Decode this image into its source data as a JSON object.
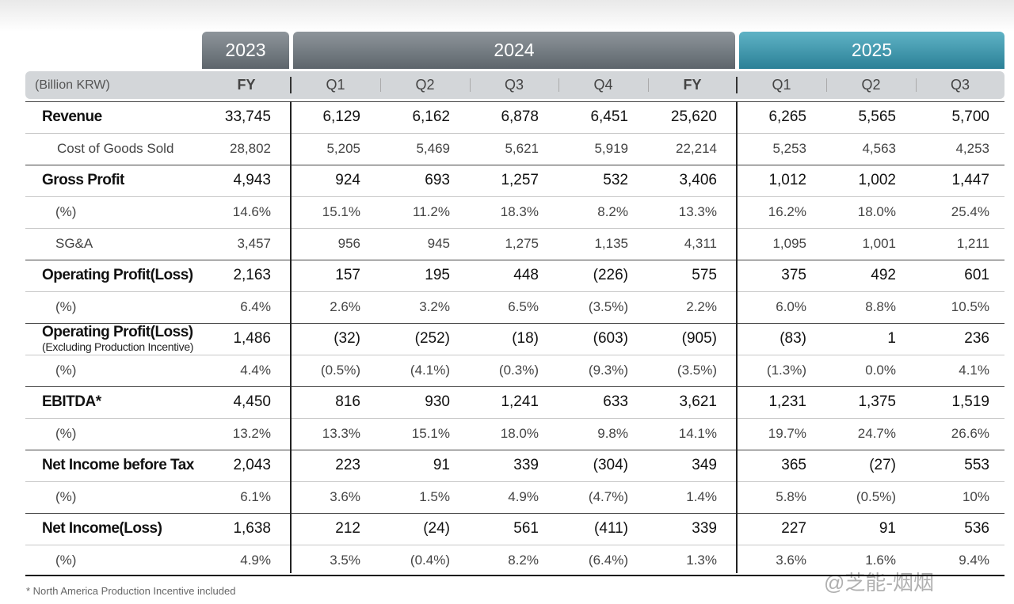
{
  "table": {
    "year_groups": [
      "2023",
      "2024",
      "2025"
    ],
    "unit": "(Billion KRW)",
    "columns": [
      "FY",
      "Q1",
      "Q2",
      "Q3",
      "Q4",
      "FY",
      "Q1",
      "Q2",
      "Q3"
    ],
    "rows": [
      {
        "label": "Revenue",
        "bold": true,
        "values": [
          "33,745",
          "6,129",
          "6,162",
          "6,878",
          "6,451",
          "25,620",
          "6,265",
          "5,565",
          "5,700"
        ]
      },
      {
        "label": "Cost of Goods Sold",
        "bold": false,
        "values": [
          "28,802",
          "5,205",
          "5,469",
          "5,621",
          "5,919",
          "22,214",
          "5,253",
          "4,563",
          "4,253"
        ]
      },
      {
        "label": "Gross Profit",
        "bold": true,
        "values": [
          "4,943",
          "924",
          "693",
          "1,257",
          "532",
          "3,406",
          "1,012",
          "1,002",
          "1,447"
        ]
      },
      {
        "label": "(%)",
        "bold": false,
        "values": [
          "14.6%",
          "15.1%",
          "11.2%",
          "18.3%",
          "8.2%",
          "13.3%",
          "16.2%",
          "18.0%",
          "25.4%"
        ]
      },
      {
        "label": "SG&A",
        "bold": false,
        "values": [
          "3,457",
          "956",
          "945",
          "1,275",
          "1,135",
          "4,311",
          "1,095",
          "1,001",
          "1,211"
        ]
      },
      {
        "label": "Operating Profit(Loss)",
        "bold": true,
        "values": [
          "2,163",
          "157",
          "195",
          "448",
          "(226)",
          "575",
          "375",
          "492",
          "601"
        ]
      },
      {
        "label": "(%)",
        "bold": false,
        "values": [
          "6.4%",
          "2.6%",
          "3.2%",
          "6.5%",
          "(3.5%)",
          "2.2%",
          "6.0%",
          "8.8%",
          "10.5%"
        ]
      },
      {
        "label": "Operating Profit(Loss)",
        "note": "(Excluding Production Incentive)",
        "bold": true,
        "values": [
          "1,486",
          "(32)",
          "(252)",
          "(18)",
          "(603)",
          "(905)",
          "(83)",
          "1",
          "236"
        ]
      },
      {
        "label": "(%)",
        "bold": false,
        "values": [
          "4.4%",
          "(0.5%)",
          "(4.1%)",
          "(0.3%)",
          "(9.3%)",
          "(3.5%)",
          "(1.3%)",
          "0.0%",
          "4.1%"
        ]
      },
      {
        "label": "EBITDA*",
        "bold": true,
        "values": [
          "4,450",
          "816",
          "930",
          "1,241",
          "633",
          "3,621",
          "1,231",
          "1,375",
          "1,519"
        ]
      },
      {
        "label": "(%)",
        "bold": false,
        "values": [
          "13.2%",
          "13.3%",
          "15.1%",
          "18.0%",
          "9.8%",
          "14.1%",
          "19.7%",
          "24.7%",
          "26.6%"
        ]
      },
      {
        "label": "Net Income before Tax",
        "bold": true,
        "values": [
          "2,043",
          "223",
          "91",
          "339",
          "(304)",
          "349",
          "365",
          "(27)",
          "553"
        ]
      },
      {
        "label": "(%)",
        "bold": false,
        "values": [
          "6.1%",
          "3.6%",
          "1.5%",
          "4.9%",
          "(4.7%)",
          "1.4%",
          "5.8%",
          "(0.5%)",
          "10%"
        ]
      },
      {
        "label": "Net Income(Loss)",
        "bold": true,
        "values": [
          "1,638",
          "212",
          "(24)",
          "561",
          "(411)",
          "339",
          "227",
          "91",
          "536"
        ]
      },
      {
        "label": "(%)",
        "bold": false,
        "values": [
          "4.9%",
          "3.5%",
          "(0.4%)",
          "8.2%",
          "(6.4%)",
          "1.3%",
          "3.6%",
          "1.6%",
          "9.4%"
        ]
      }
    ]
  },
  "footnote": "* North America Production Incentive included",
  "watermark": "@芝能-烟烟"
}
